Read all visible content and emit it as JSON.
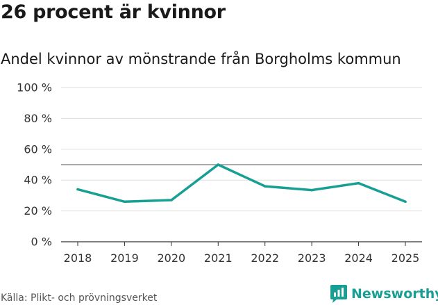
{
  "title": "26 procent är kvinnor",
  "subtitle": "Andel kvinnor av mönstrande från Borgholms kommun",
  "source": "Källa: Plikt- och prövningsverket",
  "brand": {
    "name": "Newsworthy",
    "icon": "newsworthy-logo-icon",
    "color": "#189f94"
  },
  "chart_data": {
    "type": "line",
    "title": "26 procent är kvinnor",
    "subtitle": "Andel kvinnor av mönstrande från Borgholms kommun",
    "xlabel": "",
    "ylabel": "",
    "x": [
      "2018",
      "2019",
      "2020",
      "2021",
      "2022",
      "2023",
      "2024",
      "2025"
    ],
    "series": [
      {
        "values": [
          34,
          26,
          27,
          50,
          36,
          33.5,
          38,
          26
        ],
        "color": "#189f94"
      }
    ],
    "ylim": [
      0,
      100
    ],
    "yticks": [
      0,
      20,
      40,
      60,
      80,
      100
    ],
    "ytick_labels": [
      "0 %",
      "20 %",
      "40 %",
      "60 %",
      "80 %",
      "100 %"
    ],
    "reference_line": 50,
    "grid": true,
    "legend": "none"
  }
}
